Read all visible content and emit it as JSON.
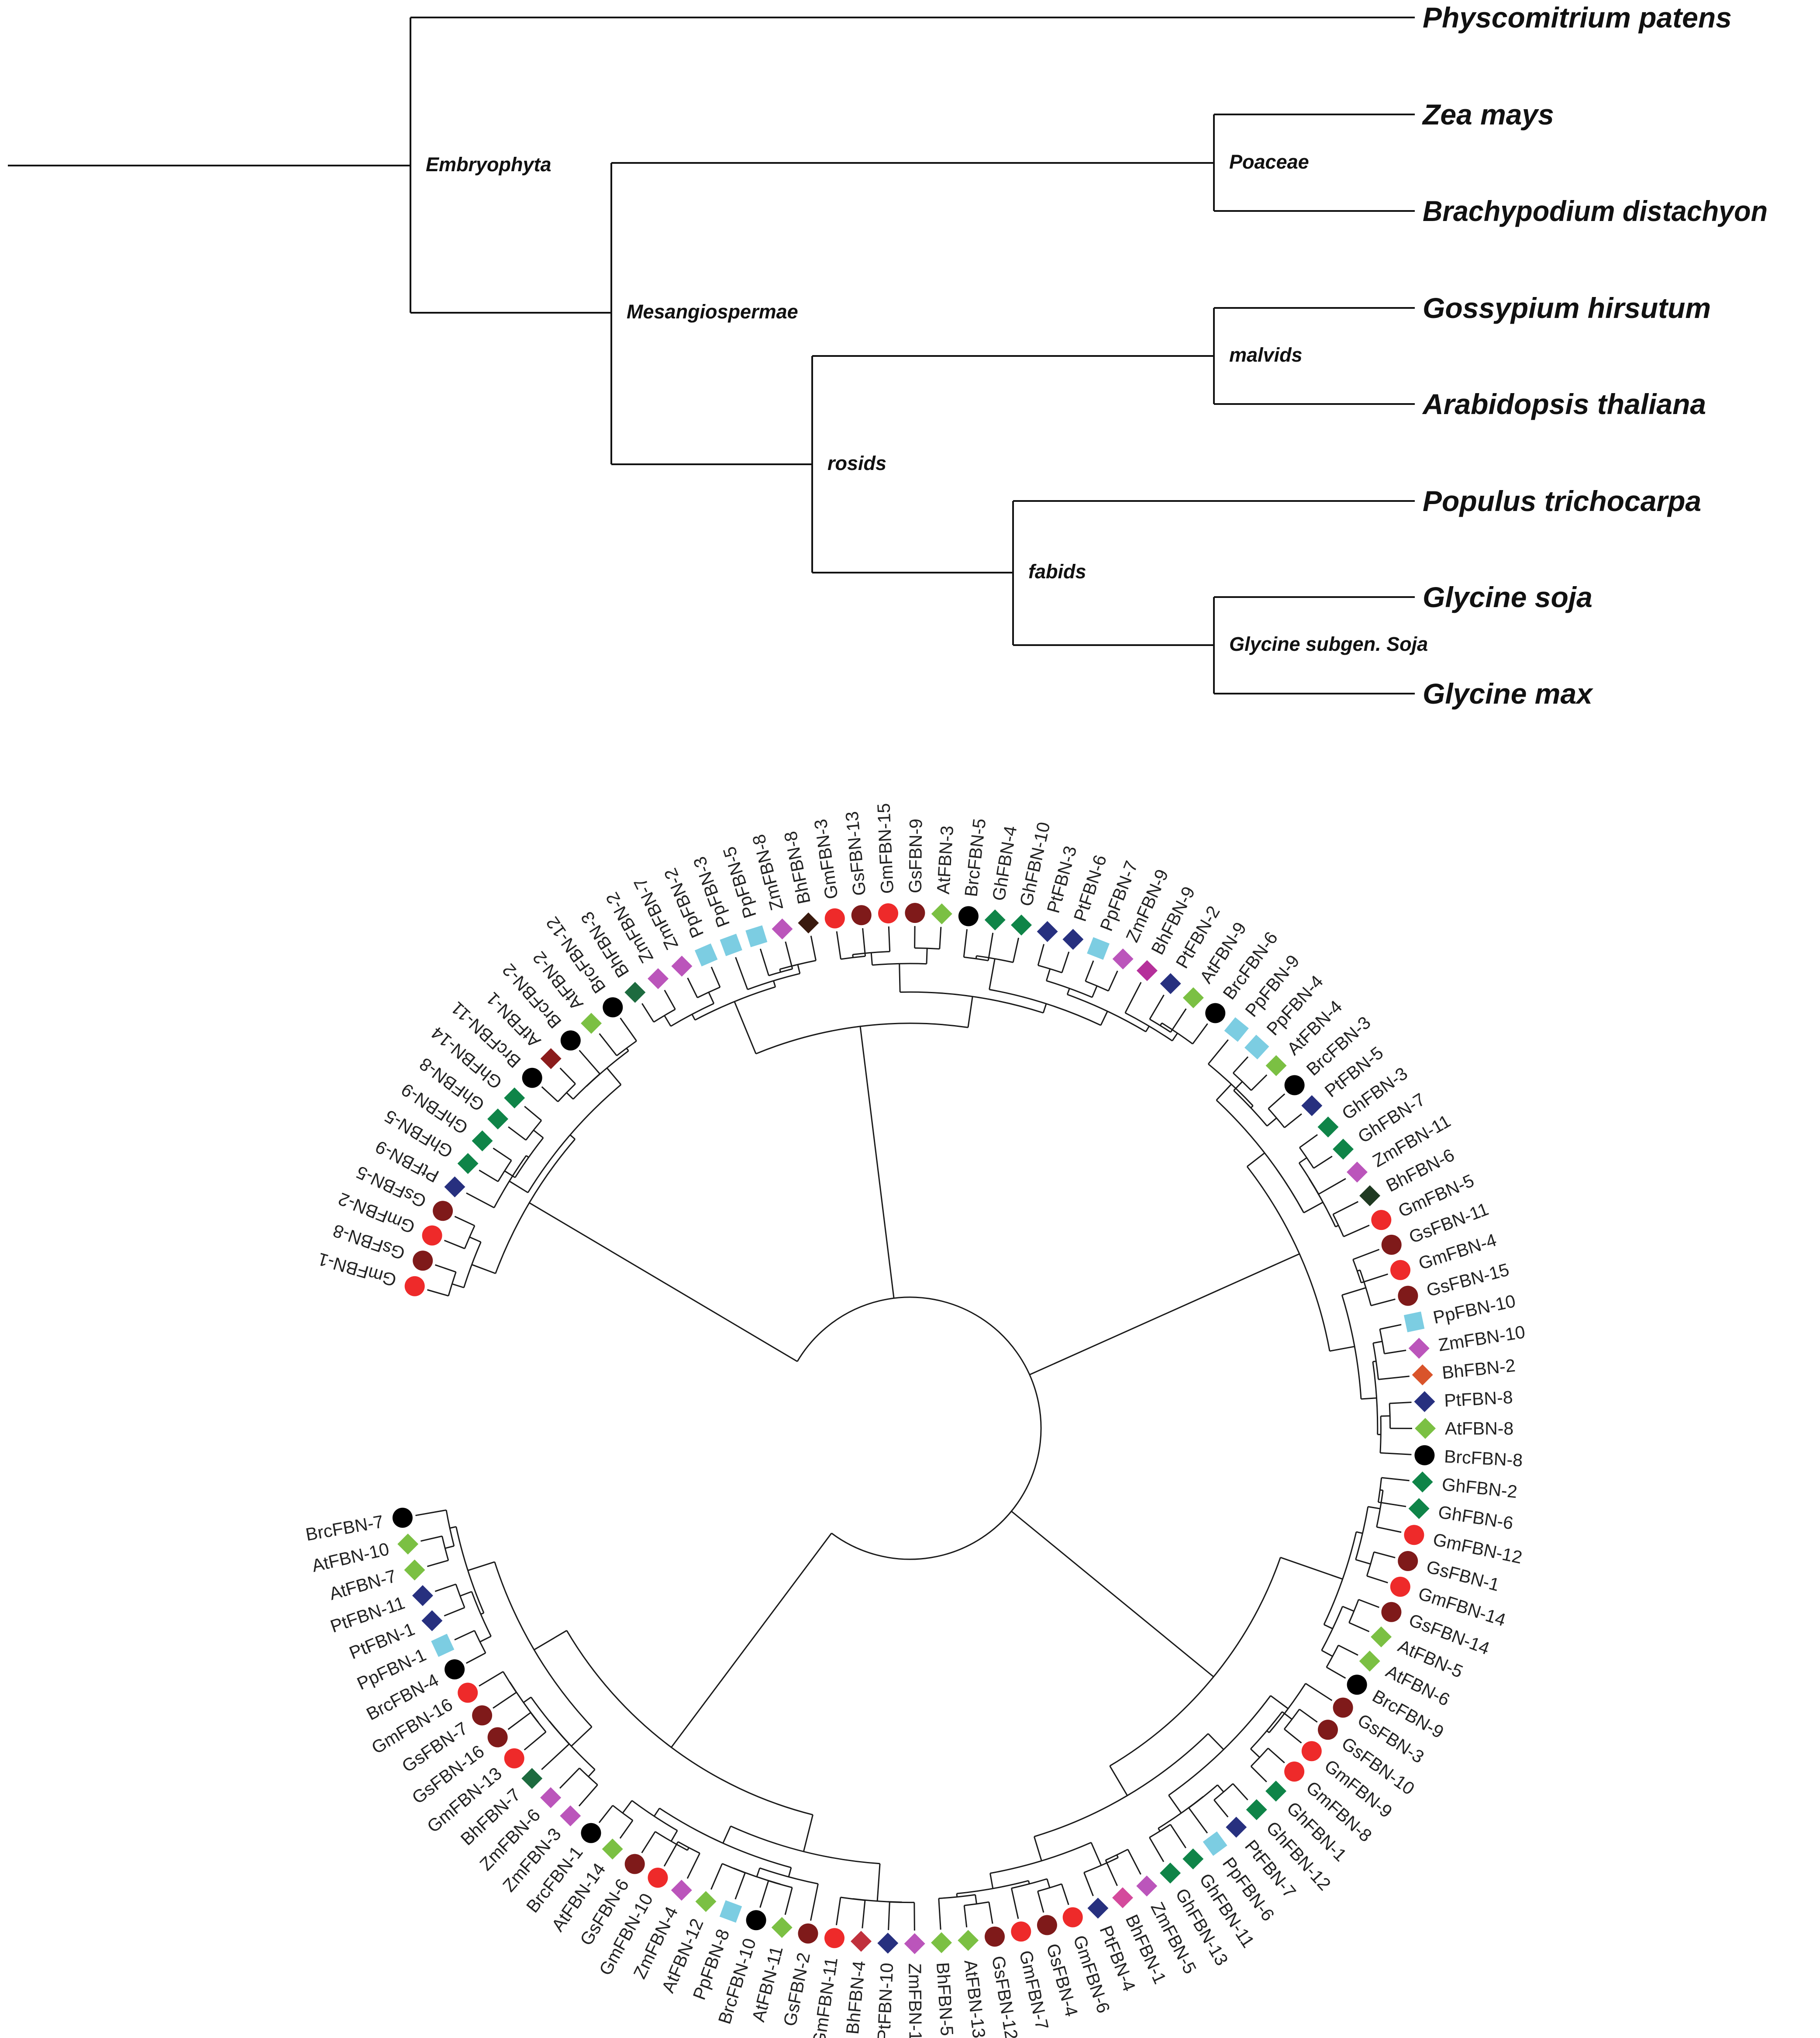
{
  "species_tree": {
    "species": [
      {
        "id": "physcomitrium",
        "label": "Physcomitrium patens"
      },
      {
        "id": "zea",
        "label": "Zea mays"
      },
      {
        "id": "brachypodium",
        "label": "Brachypodium distachyon"
      },
      {
        "id": "gossypium",
        "label": "Gossypium hirsutum"
      },
      {
        "id": "arabidopsis",
        "label": "Arabidopsis thaliana"
      },
      {
        "id": "populus",
        "label": "Populus trichocarpa"
      },
      {
        "id": "glycine-soja",
        "label": "Glycine soja"
      },
      {
        "id": "glycine-max",
        "label": "Glycine max"
      }
    ],
    "nodes": [
      {
        "id": "embryophyta",
        "label": "Embryophyta"
      },
      {
        "id": "mesangiospermae",
        "label": "Mesangiospermae"
      },
      {
        "id": "poaceae",
        "label": "Poaceae"
      },
      {
        "id": "rosids",
        "label": "rosids"
      },
      {
        "id": "malvids",
        "label": "malvids"
      },
      {
        "id": "fabids",
        "label": "fabids"
      },
      {
        "id": "glycine-subgen",
        "label": "Glycine subgen. Soja"
      }
    ]
  },
  "fbn_tree": {
    "colors": {
      "Gm": "#ee2a2a",
      "Gs": "#7f1a1a",
      "Brc": "#000000",
      "At": "#7bc043",
      "Pt": "#27307f",
      "Gh": "#0f8448",
      "Zm": "#bb55bb",
      "Pp": "#7ccde2",
      "Bh": "#2d2d2d"
    },
    "tips": [
      {
        "label": "GmFBN-1",
        "marker": "circle",
        "group": "Gm"
      },
      {
        "label": "GsFBN-8",
        "marker": "circle",
        "group": "Gs"
      },
      {
        "label": "GmFBN-2",
        "marker": "circle",
        "group": "Gm"
      },
      {
        "label": "GsFBN-5",
        "marker": "circle",
        "group": "Gs"
      },
      {
        "label": "PtFBN-9",
        "marker": "diamond",
        "group": "Pt"
      },
      {
        "label": "GhFBN-5",
        "marker": "diamond",
        "group": "Gh"
      },
      {
        "label": "GhFBN-9",
        "marker": "diamond",
        "group": "Gh"
      },
      {
        "label": "GhFBN-8",
        "marker": "diamond",
        "group": "Gh"
      },
      {
        "label": "GhFBN-14",
        "marker": "diamond",
        "group": "Gh"
      },
      {
        "label": "BrcFBN-11",
        "marker": "circle",
        "group": "Brc"
      },
      {
        "label": "AtFBN-1",
        "marker": "diamond",
        "group": "At",
        "color": "#8b1c1c"
      },
      {
        "label": "BrcFBN-2",
        "marker": "circle",
        "group": "Brc"
      },
      {
        "label": "AtFBN-2",
        "marker": "diamond",
        "group": "At"
      },
      {
        "label": "BrcFBN-12",
        "marker": "circle",
        "group": "Brc"
      },
      {
        "label": "BhFBN-3",
        "marker": "diamond",
        "group": "Bh",
        "color": "#1d6b3f"
      },
      {
        "label": "ZmFBN-2",
        "marker": "diamond",
        "group": "Zm"
      },
      {
        "label": "ZmFBN-7",
        "marker": "diamond",
        "group": "Zm"
      },
      {
        "label": "PpFBN-2",
        "marker": "square",
        "group": "Pp"
      },
      {
        "label": "PpFBN-3",
        "marker": "square",
        "group": "Pp"
      },
      {
        "label": "PpFBN-5",
        "marker": "square",
        "group": "Pp"
      },
      {
        "label": "ZmFBN-8",
        "marker": "diamond",
        "group": "Zm"
      },
      {
        "label": "BhFBN-8",
        "marker": "diamond",
        "group": "Bh",
        "color": "#3a1a0e"
      },
      {
        "label": "GmFBN-3",
        "marker": "circle",
        "group": "Gm"
      },
      {
        "label": "GsFBN-13",
        "marker": "circle",
        "group": "Gs"
      },
      {
        "label": "GmFBN-15",
        "marker": "circle",
        "group": "Gm"
      },
      {
        "label": "GsFBN-9",
        "marker": "circle",
        "group": "Gs"
      },
      {
        "label": "AtFBN-3",
        "marker": "diamond",
        "group": "At"
      },
      {
        "label": "BrcFBN-5",
        "marker": "circle",
        "group": "Brc"
      },
      {
        "label": "GhFBN-4",
        "marker": "diamond",
        "group": "Gh"
      },
      {
        "label": "GhFBN-10",
        "marker": "diamond",
        "group": "Gh"
      },
      {
        "label": "PtFBN-3",
        "marker": "diamond",
        "group": "Pt"
      },
      {
        "label": "PtFBN-6",
        "marker": "diamond",
        "group": "Pt"
      },
      {
        "label": "PpFBN-7",
        "marker": "square",
        "group": "Pp"
      },
      {
        "label": "ZmFBN-9",
        "marker": "diamond",
        "group": "Zm"
      },
      {
        "label": "BhFBN-9",
        "marker": "diamond",
        "group": "Bh",
        "color": "#b5309a"
      },
      {
        "label": "PtFBN-2",
        "marker": "diamond",
        "group": "Pt"
      },
      {
        "label": "AtFBN-9",
        "marker": "diamond",
        "group": "At"
      },
      {
        "label": "BrcFBN-6",
        "marker": "circle",
        "group": "Brc"
      },
      {
        "label": "PpFBN-9",
        "marker": "square",
        "group": "Pp"
      },
      {
        "label": "PpFBN-4",
        "marker": "square",
        "group": "Pp"
      },
      {
        "label": "AtFBN-4",
        "marker": "diamond",
        "group": "At"
      },
      {
        "label": "BrcFBN-3",
        "marker": "circle",
        "group": "Brc"
      },
      {
        "label": "PtFBN-5",
        "marker": "diamond",
        "group": "Pt"
      },
      {
        "label": "GhFBN-3",
        "marker": "diamond",
        "group": "Gh"
      },
      {
        "label": "GhFBN-7",
        "marker": "diamond",
        "group": "Gh"
      },
      {
        "label": "ZmFBN-11",
        "marker": "diamond",
        "group": "Zm"
      },
      {
        "label": "BhFBN-6",
        "marker": "diamond",
        "group": "Bh",
        "color": "#1f3a22"
      },
      {
        "label": "GmFBN-5",
        "marker": "circle",
        "group": "Gm"
      },
      {
        "label": "GsFBN-11",
        "marker": "circle",
        "group": "Gs"
      },
      {
        "label": "GmFBN-4",
        "marker": "circle",
        "group": "Gm"
      },
      {
        "label": "GsFBN-15",
        "marker": "circle",
        "group": "Gs"
      },
      {
        "label": "PpFBN-10",
        "marker": "square",
        "group": "Pp"
      },
      {
        "label": "ZmFBN-10",
        "marker": "diamond",
        "group": "Zm"
      },
      {
        "label": "BhFBN-2",
        "marker": "diamond",
        "group": "Bh",
        "color": "#d9542b"
      },
      {
        "label": "PtFBN-8",
        "marker": "diamond",
        "group": "Pt"
      },
      {
        "label": "AtFBN-8",
        "marker": "diamond",
        "group": "At"
      },
      {
        "label": "BrcFBN-8",
        "marker": "circle",
        "group": "Brc"
      },
      {
        "label": "GhFBN-2",
        "marker": "diamond",
        "group": "Gh"
      },
      {
        "label": "GhFBN-6",
        "marker": "diamond",
        "group": "Gh"
      },
      {
        "label": "GmFBN-12",
        "marker": "circle",
        "group": "Gm"
      },
      {
        "label": "GsFBN-1",
        "marker": "circle",
        "group": "Gs"
      },
      {
        "label": "GmFBN-14",
        "marker": "circle",
        "group": "Gm"
      },
      {
        "label": "GsFBN-14",
        "marker": "circle",
        "group": "Gs"
      },
      {
        "label": "AtFBN-5",
        "marker": "diamond",
        "group": "At"
      },
      {
        "label": "AtFBN-6",
        "marker": "diamond",
        "group": "At"
      },
      {
        "label": "BrcFBN-9",
        "marker": "circle",
        "group": "Brc"
      },
      {
        "label": "GsFBN-3",
        "marker": "circle",
        "group": "Gs"
      },
      {
        "label": "GsFBN-10",
        "marker": "circle",
        "group": "Gs"
      },
      {
        "label": "GmFBN-9",
        "marker": "circle",
        "group": "Gm"
      },
      {
        "label": "GmFBN-8",
        "marker": "circle",
        "group": "Gm"
      },
      {
        "label": "GhFBN-1",
        "marker": "diamond",
        "group": "Gh"
      },
      {
        "label": "GhFBN-12",
        "marker": "diamond",
        "group": "Gh"
      },
      {
        "label": "PtFBN-7",
        "marker": "diamond",
        "group": "Pt"
      },
      {
        "label": "PpFBN-6",
        "marker": "square",
        "group": "Pp"
      },
      {
        "label": "GhFBN-11",
        "marker": "diamond",
        "group": "Gh"
      },
      {
        "label": "GhFBN-13",
        "marker": "diamond",
        "group": "Gh"
      },
      {
        "label": "ZmFBN-5",
        "marker": "diamond",
        "group": "Zm"
      },
      {
        "label": "BhFBN-1",
        "marker": "diamond",
        "group": "Bh",
        "color": "#d44a9c"
      },
      {
        "label": "PtFBN-4",
        "marker": "diamond",
        "group": "Pt"
      },
      {
        "label": "GmFBN-6",
        "marker": "circle",
        "group": "Gm"
      },
      {
        "label": "GsFBN-4",
        "marker": "circle",
        "group": "Gs"
      },
      {
        "label": "GmFBN-7",
        "marker": "circle",
        "group": "Gm"
      },
      {
        "label": "GsFBN-12",
        "marker": "circle",
        "group": "Gs"
      },
      {
        "label": "AtFBN-13",
        "marker": "diamond",
        "group": "At"
      },
      {
        "label": "BhFBN-5",
        "marker": "diamond",
        "group": "Bh",
        "color": "#7bc043"
      },
      {
        "label": "ZmFBN-1",
        "marker": "diamond",
        "group": "Zm"
      },
      {
        "label": "PtFBN-10",
        "marker": "diamond",
        "group": "Pt"
      },
      {
        "label": "BhFBN-4",
        "marker": "diamond",
        "group": "Bh",
        "color": "#c0303c"
      },
      {
        "label": "GmFBN-11",
        "marker": "circle",
        "group": "Gm"
      },
      {
        "label": "GsFBN-2",
        "marker": "circle",
        "group": "Gs"
      },
      {
        "label": "AtFBN-11",
        "marker": "diamond",
        "group": "At"
      },
      {
        "label": "BrcFBN-10",
        "marker": "circle",
        "group": "Brc"
      },
      {
        "label": "PpFBN-8",
        "marker": "square",
        "group": "Pp"
      },
      {
        "label": "AtFBN-12",
        "marker": "diamond",
        "group": "At"
      },
      {
        "label": "ZmFBN-4",
        "marker": "diamond",
        "group": "Zm"
      },
      {
        "label": "GmFBN-10",
        "marker": "circle",
        "group": "Gm"
      },
      {
        "label": "GsFBN-6",
        "marker": "circle",
        "group": "Gs"
      },
      {
        "label": "AtFBN-14",
        "marker": "diamond",
        "group": "At"
      },
      {
        "label": "BrcFBN-1",
        "marker": "circle",
        "group": "Brc"
      },
      {
        "label": "ZmFBN-3",
        "marker": "diamond",
        "group": "Zm"
      },
      {
        "label": "ZmFBN-6",
        "marker": "diamond",
        "group": "Zm"
      },
      {
        "label": "BhFBN-7",
        "marker": "diamond",
        "group": "Bh",
        "color": "#1d6b3f"
      },
      {
        "label": "GmFBN-13",
        "marker": "circle",
        "group": "Gm"
      },
      {
        "label": "GsFBN-16",
        "marker": "circle",
        "group": "Gs"
      },
      {
        "label": "GsFBN-7",
        "marker": "circle",
        "group": "Gs"
      },
      {
        "label": "GmFBN-16",
        "marker": "circle",
        "group": "Gm"
      },
      {
        "label": "BrcFBN-4",
        "marker": "circle",
        "group": "Brc"
      },
      {
        "label": "PpFBN-1",
        "marker": "square",
        "group": "Pp"
      },
      {
        "label": "PtFBN-1",
        "marker": "diamond",
        "group": "Pt"
      },
      {
        "label": "PtFBN-11",
        "marker": "diamond",
        "group": "Pt"
      },
      {
        "label": "AtFBN-7",
        "marker": "diamond",
        "group": "At"
      },
      {
        "label": "AtFBN-10",
        "marker": "diamond",
        "group": "At"
      },
      {
        "label": "BrcFBN-7",
        "marker": "circle",
        "group": "Brc"
      }
    ]
  }
}
